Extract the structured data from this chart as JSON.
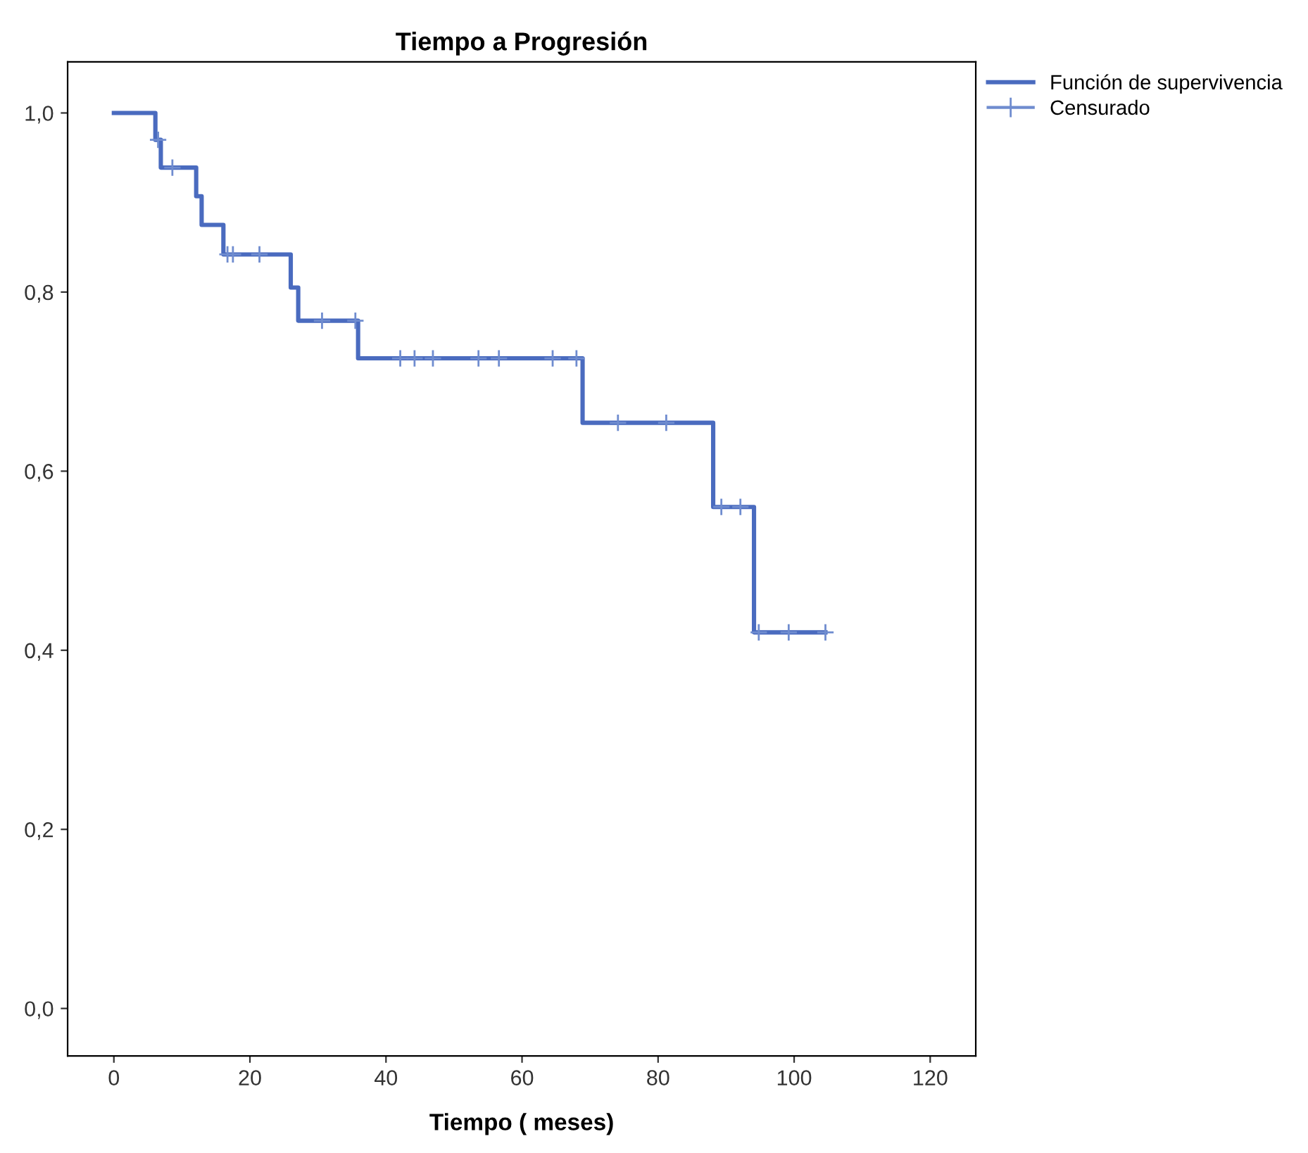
{
  "chart_data": {
    "type": "step",
    "title": "Tiempo a Progresión",
    "xlabel": "Tiempo ( meses)",
    "xlim": [
      -6.8,
      126.7
    ],
    "xticks": [
      0,
      20,
      40,
      60,
      80,
      100,
      120
    ],
    "ylim": [
      -0.053,
      1.057
    ],
    "yticks": [
      {
        "value": 0,
        "label": "0,0"
      },
      {
        "value": 0.2,
        "label": "0,2"
      },
      {
        "value": 0.4,
        "label": "0,4"
      },
      {
        "value": 0.6,
        "label": "0,6"
      },
      {
        "value": 0.8,
        "label": "0,8"
      },
      {
        "value": 1.0,
        "label": "1,0"
      }
    ],
    "grid": false,
    "legend": "top right",
    "series": [
      {
        "name": "Función de supervivencia",
        "color": "#4a6bbf",
        "marker": "none",
        "x": [
          0,
          6.1,
          6.9,
          12.1,
          12.9,
          16.1,
          26.0,
          27.1,
          35.9,
          68.9,
          88.1,
          94.1,
          104.6
        ],
        "values": [
          1.0,
          0.97,
          0.939,
          0.907,
          0.875,
          0.842,
          0.805,
          0.768,
          0.726,
          0.654,
          0.56,
          0.42,
          0.42
        ]
      },
      {
        "name": "Censurado",
        "type": "scatter",
        "color": "#6f8ccf",
        "marker": "cross",
        "x": [
          6.5,
          8.6,
          16.7,
          17.5,
          21.4,
          30.6,
          35.5,
          42.1,
          44.2,
          46.9,
          53.6,
          56.6,
          64.5,
          68.0,
          74.1,
          81.2,
          89.3,
          92.1,
          94.8,
          99.2,
          104.6
        ],
        "values": [
          0.97,
          0.939,
          0.842,
          0.842,
          0.842,
          0.768,
          0.768,
          0.726,
          0.726,
          0.726,
          0.726,
          0.726,
          0.726,
          0.726,
          0.654,
          0.654,
          0.56,
          0.56,
          0.42,
          0.42,
          0.42
        ]
      }
    ]
  }
}
